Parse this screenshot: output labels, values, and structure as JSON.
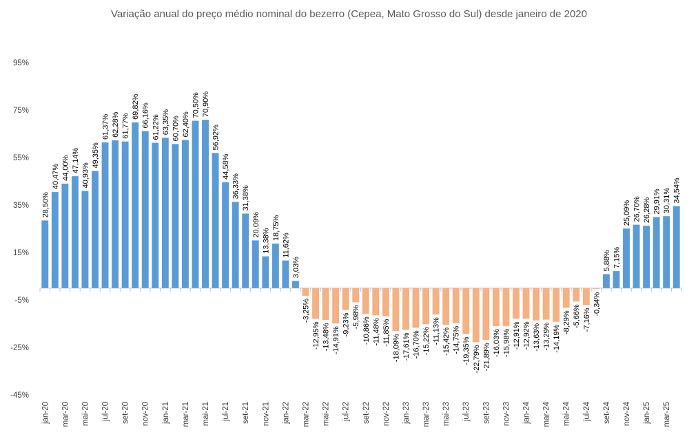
{
  "chart_data": {
    "type": "bar",
    "title": "Variação anual do preço médio nominal do bezerro (Cepea, Mato Grosso do Sul) desde janeiro de 2020",
    "xlabel": "",
    "ylabel": "",
    "ylim": [
      -45,
      95
    ],
    "yticks": [
      "95%",
      "75%",
      "55%",
      "35%",
      "15%",
      "-5%",
      "-25%",
      "-45%"
    ],
    "ytick_values": [
      95,
      75,
      55,
      35,
      15,
      -5,
      -25,
      -45
    ],
    "grid": false,
    "legend": "none",
    "colors": {
      "positive": "#5b9bd5",
      "negative": "#f4b183"
    },
    "categories": [
      "jan-20",
      "fev-20",
      "mar-20",
      "abr-20",
      "mai-20",
      "jun-20",
      "jul-20",
      "ago-20",
      "set-20",
      "out-20",
      "nov-20",
      "dez-20",
      "jan-21",
      "fev-21",
      "mar-21",
      "abr-21",
      "mai-21",
      "jun-21",
      "jul-21",
      "ago-21",
      "set-21",
      "out-21",
      "nov-21",
      "dez-21",
      "jan-22",
      "fev-22",
      "mar-22",
      "abr-22",
      "mai-22",
      "jun-22",
      "jul-22",
      "ago-22",
      "set-22",
      "out-22",
      "nov-22",
      "dez-22",
      "jan-23",
      "fev-23",
      "mar-23",
      "abr-23",
      "mai-23",
      "jun-23",
      "jul-23",
      "ago-23",
      "set-23",
      "out-23",
      "nov-23",
      "dez-23",
      "jan-24",
      "fev-24",
      "mar-24",
      "abr-24",
      "mai-24",
      "jun-24",
      "jul-24",
      "ago-24",
      "set-24",
      "out-24",
      "nov-24",
      "dez-24",
      "jan-25",
      "fev-25",
      "mar-25",
      "abr-25"
    ],
    "x_tick_labels": [
      "jan-20",
      "",
      "mar-20",
      "",
      "mai-20",
      "",
      "jul-20",
      "",
      "set-20",
      "",
      "nov-20",
      "",
      "jan-21",
      "",
      "mar-21",
      "",
      "mai-21",
      "",
      "jul-21",
      "",
      "set-21",
      "",
      "nov-21",
      "",
      "jan-22",
      "",
      "mar-22",
      "",
      "mai-22",
      "",
      "jul-22",
      "",
      "set-22",
      "",
      "nov-22",
      "",
      "jan-23",
      "",
      "mar-23",
      "",
      "mai-23",
      "",
      "jul-23",
      "",
      "set-23",
      "",
      "nov-23",
      "",
      "jan-24",
      "",
      "mar-24",
      "",
      "mai-24",
      "",
      "jul-24",
      "",
      "set-24",
      "",
      "nov-24",
      "",
      "jan-25",
      "",
      "mar-25",
      ""
    ],
    "values": [
      28.5,
      40.47,
      44.0,
      47.14,
      40.93,
      49.35,
      61.37,
      62.28,
      61.77,
      69.82,
      66.16,
      61.22,
      63.35,
      60.7,
      62.4,
      70.5,
      70.9,
      56.92,
      44.58,
      36.33,
      31.38,
      20.09,
      13.38,
      18.75,
      11.62,
      3.03,
      -3.25,
      -12.95,
      -13.48,
      -14.91,
      -9.23,
      -5.98,
      -10.86,
      -11.48,
      -11.85,
      -18.09,
      -17.61,
      -16.7,
      -15.22,
      -11.13,
      -15.42,
      -14.75,
      -19.35,
      -22.79,
      -21.89,
      -16.03,
      -15.98,
      -12.91,
      -12.92,
      -13.63,
      -13.29,
      -14.19,
      -8.29,
      -5.66,
      -7.16,
      -0.34,
      5.88,
      7.15,
      25.09,
      26.7,
      26.28,
      29.91,
      30.31,
      34.54
    ],
    "data_labels": [
      "28,50%",
      "40,47%",
      "44,00%",
      "47,14%",
      "40,93%",
      "49,35%",
      "61,37%",
      "62,28%",
      "61,77%",
      "69,82%",
      "66,16%",
      "61,22%",
      "63,35%",
      "60,70%",
      "62,40%",
      "70,50%",
      "70,90%",
      "56,92%",
      "44,58%",
      "36,33%",
      "31,38%",
      "20,09%",
      "13,38%",
      "18,75%",
      "11,62%",
      "3,03%",
      "-3,25%",
      "-12,95%",
      "-13,48%",
      "-14,91%",
      "-9,23%",
      "-5,98%",
      "-10,86%",
      "-11,48%",
      "-11,85%",
      "-18,09%",
      "-17,61%",
      "-16,70%",
      "-15,22%",
      "-11,13%",
      "-15,42%",
      "-14,75%",
      "-19,35%",
      "-22,79%",
      "-21,89%",
      "-16,03%",
      "-15,98%",
      "-12,91%",
      "-12,92%",
      "-13,63%",
      "-13,29%",
      "-14,19%",
      "-8,29%",
      "-5,66%",
      "-7,16%",
      "-0,34%",
      "5,88%",
      "7,15%",
      "25,09%",
      "26,70%",
      "26,28%",
      "29,91%",
      "30,31%",
      "34,54%"
    ]
  }
}
